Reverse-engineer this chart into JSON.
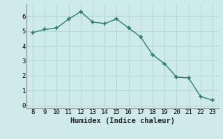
{
  "x": [
    8,
    9,
    10,
    11,
    12,
    13,
    14,
    15,
    16,
    17,
    18,
    19,
    20,
    21,
    22,
    23
  ],
  "y_curve": [
    4.9,
    5.1,
    5.2,
    5.8,
    6.3,
    5.6,
    5.5,
    5.8,
    5.2,
    4.6,
    3.4,
    2.8,
    1.9,
    1.85,
    0.6,
    0.35
  ],
  "xlabel": "Humidex (Indice chaleur)",
  "color": "#2a7f6f",
  "bg_color": "#ceeaea",
  "grid_color": "#b8d8d8",
  "ylim": [
    -0.2,
    6.8
  ],
  "xlim": [
    7.5,
    23.5
  ],
  "yticks": [
    0,
    1,
    2,
    3,
    4,
    5,
    6
  ],
  "xticks": [
    8,
    9,
    10,
    11,
    12,
    13,
    14,
    15,
    16,
    17,
    18,
    19,
    20,
    21,
    22,
    23
  ],
  "xlabel_fontsize": 7.5,
  "tick_fontsize": 6.5
}
